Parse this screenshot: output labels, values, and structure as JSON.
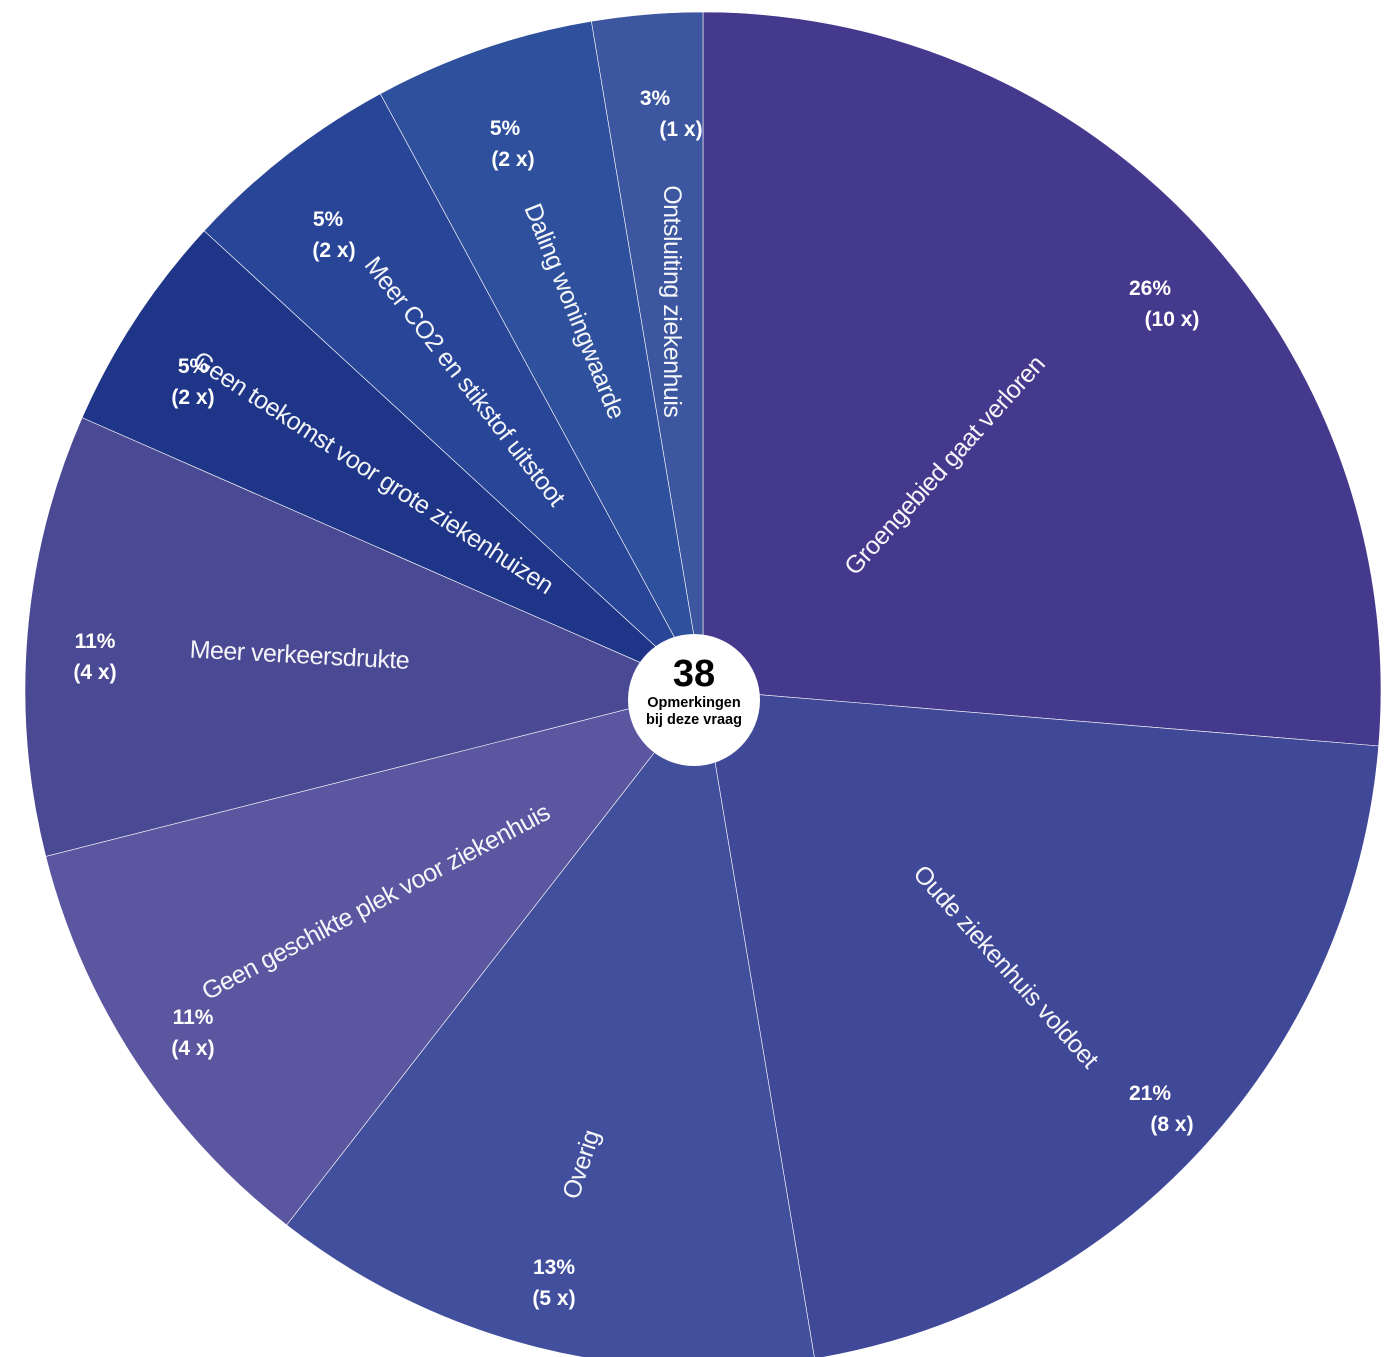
{
  "chart_data": {
    "type": "pie",
    "total": "38",
    "center_line1": "Opmerkingen",
    "center_line2": "bij deze vraag",
    "slices": [
      {
        "name": "Groengebied gaat verloren",
        "count": 10,
        "percent_label": "26%",
        "count_label": "(10 x)",
        "color": "#45398d"
      },
      {
        "name": "Oude ziekenhuis voldoet",
        "count": 8,
        "percent_label": "21%",
        "count_label": "(8 x)",
        "color": "#404898"
      },
      {
        "name": "Overig",
        "count": 5,
        "percent_label": "13%",
        "count_label": "(5 x)",
        "color": "#424f9d"
      },
      {
        "name": "Geen geschikte plek voor ziekenhuis",
        "count": 4,
        "percent_label": "11%",
        "count_label": "(4 x)",
        "color": "#5b56a0"
      },
      {
        "name": "Meer verkeersdrukte",
        "count": 4,
        "percent_label": "11%",
        "count_label": "(4 x)",
        "color": "#4a4994"
      },
      {
        "name": "Geen toekomst voor grote ziekenhuizen",
        "count": 2,
        "percent_label": "5%",
        "count_label": "(2 x)",
        "color": "#1f3688"
      },
      {
        "name": "Meer CO2 en stikstof uitstoot",
        "count": 2,
        "percent_label": "5%",
        "count_label": "(2 x)",
        "color": "#294597"
      },
      {
        "name": "Daling woningwaarde",
        "count": 2,
        "percent_label": "5%",
        "count_label": "(2 x)",
        "color": "#2f509c"
      },
      {
        "name": "Ontsluiting ziekenhuis",
        "count": 1,
        "percent_label": "3%",
        "count_label": "(1 x)",
        "color": "#3d56a0"
      }
    ]
  }
}
